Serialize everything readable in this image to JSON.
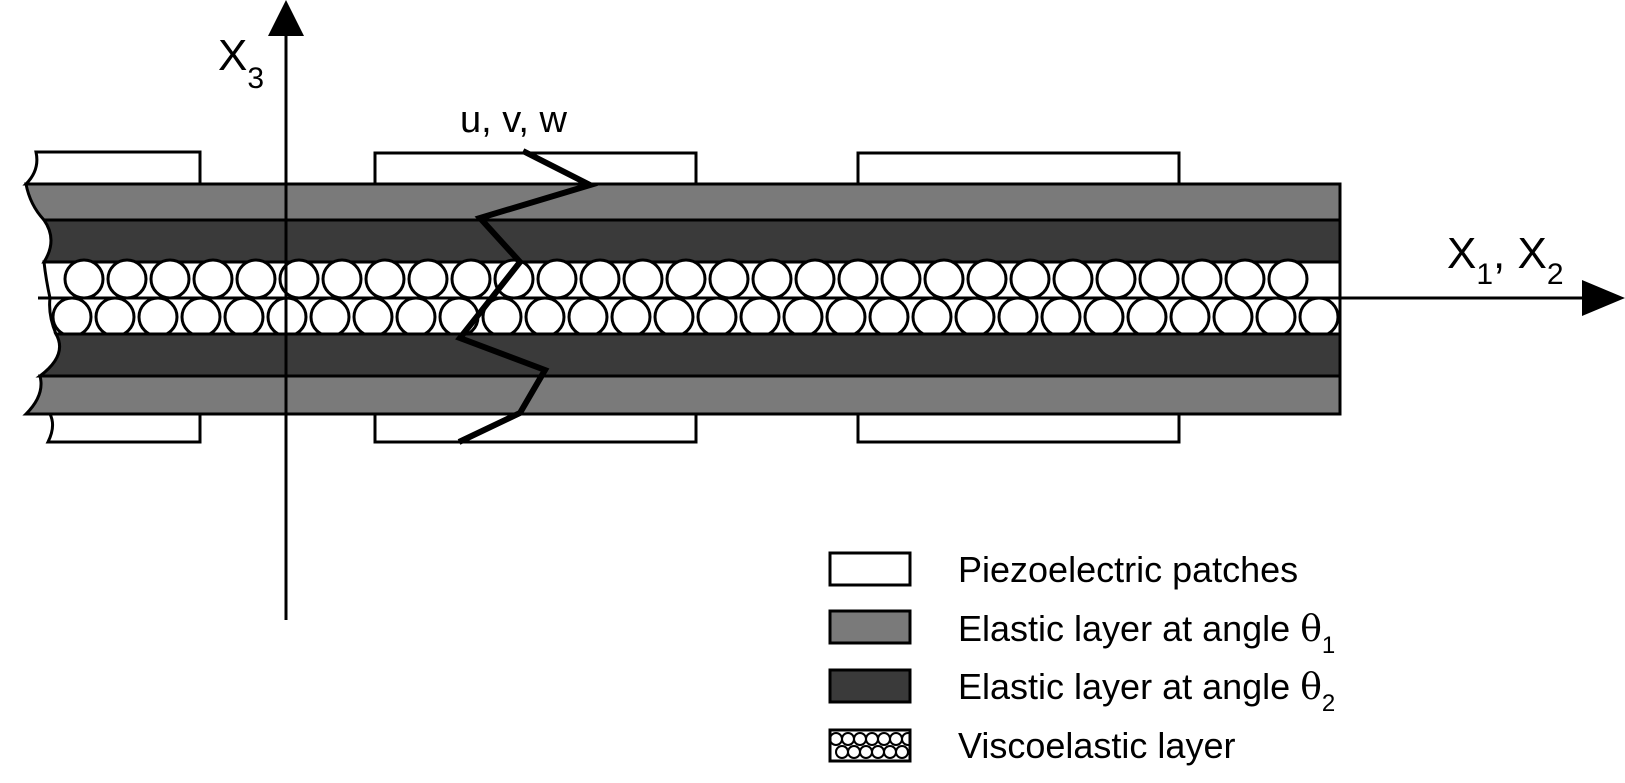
{
  "axes": {
    "vertical": {
      "main": "X",
      "sub": "3"
    },
    "horizontal": {
      "main1": "X",
      "sub1": "1",
      "sep": ", ",
      "main2": "X",
      "sub2": "2"
    }
  },
  "displacement_label": "u, v, w",
  "colors": {
    "patch": "#ffffff",
    "elastic_theta1": "#7a7a7a",
    "elastic_theta2": "#3a3a3a",
    "viscoelastic": "#ffffff",
    "stroke": "#000000"
  },
  "legend": [
    {
      "label": "Piezoelectric patches",
      "symbol": "",
      "sub": "",
      "swatch": "patch"
    },
    {
      "label": "Elastic layer at angle ",
      "symbol": "θ",
      "sub": "1",
      "swatch": "elastic_theta1"
    },
    {
      "label": "Elastic layer at angle ",
      "symbol": "θ",
      "sub": "2",
      "swatch": "elastic_theta2"
    },
    {
      "label": "Viscoelastic layer",
      "symbol": "",
      "sub": "",
      "swatch": "viscoelastic"
    }
  ]
}
